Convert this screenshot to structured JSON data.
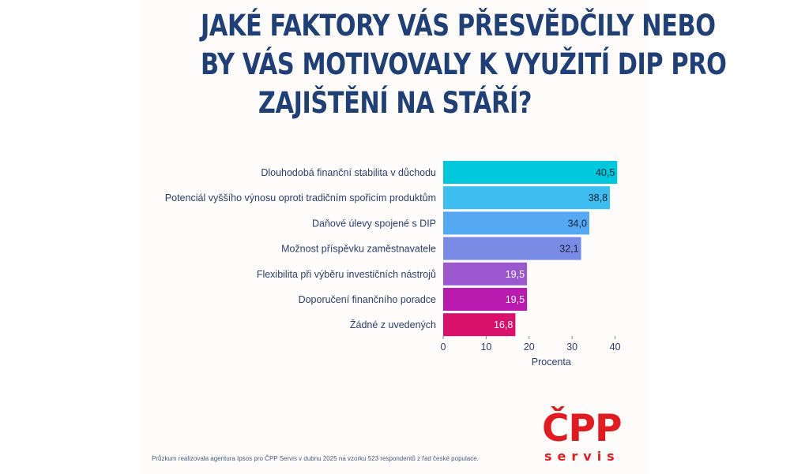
{
  "title_lines": [
    "JAKÉ FAKTORY VÁS PŘESVĚDČILY NEBO",
    "BY VÁS MOTIVOVALY K VYUŽITÍ DIP PRO",
    "ZAJIŠTĚNÍ NA STÁŘÍ?"
  ],
  "footnote": "Průzkum realizovala agentura Ipsos pro ČPP Servis v dubnu 2025 na vzorku 523 respondentů z řad české populace.",
  "logo": {
    "mark": "ČPP",
    "sub": "servis",
    "color": "#e21b23"
  },
  "chart_data": {
    "type": "bar",
    "orientation": "horizontal",
    "categories": [
      "Dlouhodobá finanční stabilita v důchodu",
      "Potenciál vyššího výnosu oproti tradičním spořicím produktům",
      "Daňové úlevy spojené s DIP",
      "Možnost příspěvku zaměstnavatele",
      "Flexibilita při výběru investičních nástrojů",
      "Doporučení finančního poradce",
      "Žádné z uvedených"
    ],
    "values": [
      40.5,
      38.8,
      34.0,
      32.1,
      19.5,
      19.5,
      16.8
    ],
    "value_labels": [
      "40,5",
      "38,8",
      "34,0",
      "32,1",
      "19,5",
      "19,5",
      "16,8"
    ],
    "colors": [
      "#00c8dc",
      "#3dbdf0",
      "#55a8f2",
      "#7a8be6",
      "#9b57cf",
      "#b91ab0",
      "#d8126a"
    ],
    "xlabel": "Procenta",
    "xticks": [
      "0",
      "10",
      "20",
      "30",
      "40"
    ],
    "xlim": [
      0,
      42
    ],
    "grid": false,
    "legend": "none"
  }
}
